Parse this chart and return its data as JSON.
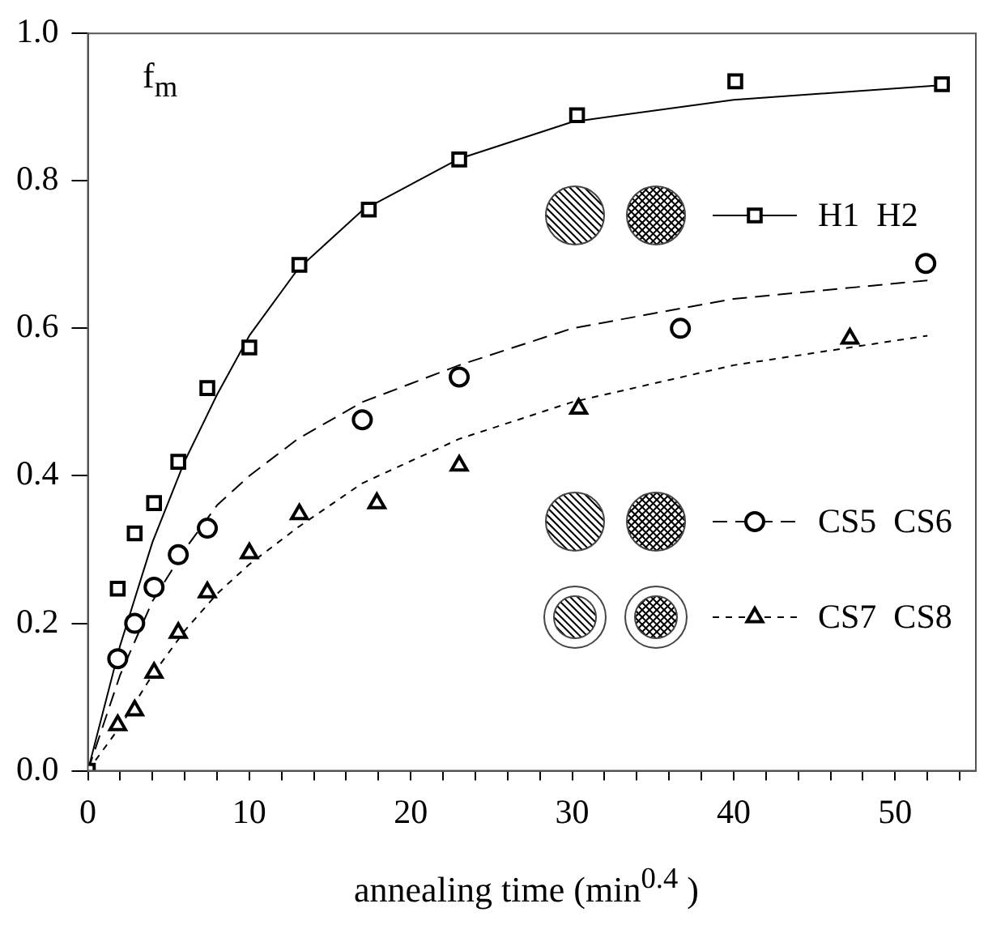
{
  "chart_data": {
    "type": "scatter",
    "xlabel": "annealing time (min$^{0.4}$ )",
    "annotations": [
      "f$_{m}$"
    ],
    "xlim": [
      0,
      55
    ],
    "xticks": [
      0,
      {
        "value": 2,
        "label": null
      },
      {
        "value": 4,
        "label": null
      },
      {
        "value": 6,
        "label": null
      },
      {
        "value": 8,
        "label": null
      },
      10,
      {
        "value": 12,
        "label": null
      },
      {
        "value": 14,
        "label": null
      },
      {
        "value": 16,
        "label": null
      },
      {
        "value": 18,
        "label": null
      },
      20,
      {
        "value": 22,
        "label": null
      },
      {
        "value": 24,
        "label": null
      },
      {
        "value": 26,
        "label": null
      },
      {
        "value": 28,
        "label": null
      },
      30,
      {
        "value": 32,
        "label": null
      },
      {
        "value": 34,
        "label": null
      },
      {
        "value": 36,
        "label": null
      },
      {
        "value": 38,
        "label": null
      },
      40,
      {
        "value": 42,
        "label": null
      },
      {
        "value": 44,
        "label": null
      },
      {
        "value": 46,
        "label": null
      },
      {
        "value": 48,
        "label": null
      },
      50,
      {
        "value": 52,
        "label": null
      },
      {
        "value": 54,
        "label": null
      }
    ],
    "ylim": [
      0,
      1
    ],
    "yticks": [
      {
        "value": 0,
        "label": "0.0"
      },
      {
        "value": 0.2,
        "label": "0.2"
      },
      {
        "value": 0.4,
        "label": "0.4"
      },
      {
        "value": 0.6,
        "label": "0.6"
      },
      {
        "value": 0.8,
        "label": "0.8"
      },
      {
        "value": 1,
        "label": "1.0"
      }
    ],
    "grid": false,
    "legend": "right",
    "series": [
      {
        "name": "H1  H2",
        "marker": "square",
        "color": "#000000",
        "x": [
          0,
          1.85,
          2.9,
          4.1,
          5.6,
          7.4,
          10,
          13.1,
          17.4,
          23,
          30.3,
          40.1,
          52.9
        ],
        "values": [
          0,
          0.247,
          0.322,
          0.363,
          0.419,
          0.519,
          0.574,
          0.686,
          0.761,
          0.829,
          0.889,
          0.935,
          0.931
        ]
      },
      {
        "type": "line",
        "marker": "none",
        "line_style": "solid",
        "color": "#000000",
        "x": [
          0,
          2,
          4,
          6,
          8,
          10,
          13,
          17,
          23,
          30,
          40,
          53
        ],
        "values": [
          0,
          0.17,
          0.31,
          0.42,
          0.51,
          0.59,
          0.68,
          0.76,
          0.83,
          0.88,
          0.91,
          0.93
        ]
      },
      {
        "name": "CS5  CS6",
        "marker": "circle",
        "color": "#000000",
        "x": [
          1.85,
          2.9,
          4.1,
          5.6,
          7.4,
          17,
          23,
          36.7,
          51.9
        ],
        "values": [
          0.152,
          0.2,
          0.249,
          0.293,
          0.329,
          0.476,
          0.534,
          0.6,
          0.688
        ]
      },
      {
        "type": "line",
        "marker": "none",
        "line_style": "dashed",
        "color": "#000000",
        "x": [
          0,
          2,
          4,
          6,
          8,
          10,
          13,
          17,
          23,
          30,
          40,
          52
        ],
        "values": [
          0,
          0.13,
          0.23,
          0.3,
          0.36,
          0.4,
          0.45,
          0.5,
          0.55,
          0.6,
          0.64,
          0.665
        ]
      },
      {
        "name": "CS7  CS8",
        "marker": "triangle",
        "color": "#000000",
        "x": [
          1.85,
          2.9,
          4.1,
          5.6,
          7.4,
          10,
          13.1,
          17.9,
          23,
          30.4,
          47.2
        ],
        "values": [
          0.062,
          0.082,
          0.133,
          0.187,
          0.242,
          0.295,
          0.348,
          0.363,
          0.414,
          0.491,
          0.586
        ]
      },
      {
        "type": "line",
        "marker": "none",
        "line_style": "dotted",
        "color": "#000000",
        "x": [
          0,
          2,
          4,
          6,
          8,
          10,
          13,
          17,
          23,
          30,
          40,
          52
        ],
        "values": [
          0,
          0.06,
          0.13,
          0.19,
          0.24,
          0.28,
          0.33,
          0.39,
          0.45,
          0.5,
          0.55,
          0.59
        ]
      }
    ]
  }
}
